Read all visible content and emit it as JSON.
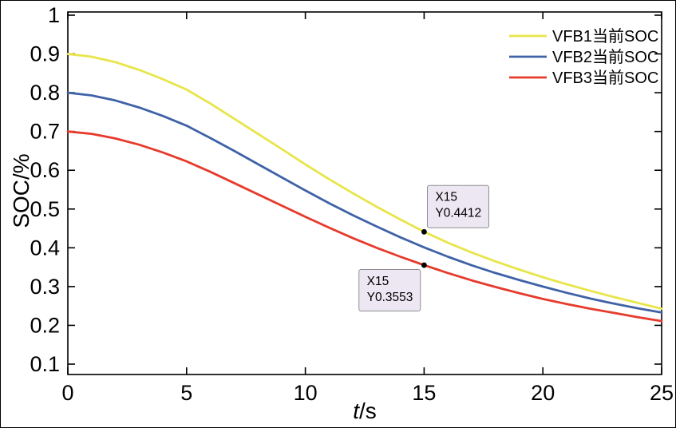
{
  "figure": {
    "background": "#ffffff",
    "border_color": "#000000"
  },
  "chart_data": {
    "type": "line",
    "title": "",
    "xlabel": "t/s",
    "xlabel_var": "t",
    "xlabel_unit": "/s",
    "ylabel": "SOC/%",
    "xlim": [
      0,
      25
    ],
    "xticks": [
      0,
      5,
      10,
      15,
      20,
      25
    ],
    "xtick_labels": [
      "0",
      "5",
      "10",
      "15",
      "20",
      "25"
    ],
    "yticks": [
      0.1,
      0.2,
      0.3,
      0.4,
      0.5,
      0.6,
      0.7,
      0.8,
      0.9,
      1
    ],
    "ytick_labels": [
      "0.1",
      "0.2",
      "0.3",
      "0.4",
      "0.5",
      "0.6",
      "0.7",
      "0.8",
      "0.9",
      "1"
    ],
    "grid": false,
    "legend_position": "top-right-inside",
    "x": [
      0,
      1,
      2,
      3,
      4,
      5,
      6,
      7,
      8,
      9,
      10,
      11,
      12,
      13,
      14,
      15,
      16,
      17,
      18,
      19,
      20,
      21,
      22,
      23,
      24,
      25
    ],
    "series": [
      {
        "name": "VFB1当前SOC",
        "color": "#e8e54a",
        "values": [
          0.9,
          0.893,
          0.879,
          0.859,
          0.835,
          0.808,
          0.772,
          0.733,
          0.694,
          0.655,
          0.615,
          0.577,
          0.541,
          0.506,
          0.473,
          0.4412,
          0.413,
          0.388,
          0.365,
          0.344,
          0.324,
          0.306,
          0.289,
          0.273,
          0.258,
          0.243
        ]
      },
      {
        "name": "VFB2当前SOC",
        "color": "#3f62a7",
        "values": [
          0.8,
          0.793,
          0.78,
          0.762,
          0.74,
          0.715,
          0.683,
          0.65,
          0.616,
          0.582,
          0.548,
          0.515,
          0.484,
          0.455,
          0.427,
          0.401,
          0.377,
          0.355,
          0.335,
          0.317,
          0.3,
          0.284,
          0.269,
          0.256,
          0.244,
          0.233
        ]
      },
      {
        "name": "VFB3当前SOC",
        "color": "#e63b2c",
        "values": [
          0.7,
          0.694,
          0.682,
          0.666,
          0.646,
          0.623,
          0.596,
          0.567,
          0.538,
          0.509,
          0.48,
          0.452,
          0.425,
          0.4,
          0.377,
          0.3553,
          0.335,
          0.316,
          0.299,
          0.283,
          0.268,
          0.255,
          0.243,
          0.232,
          0.221,
          0.211
        ]
      }
    ],
    "annotations": [
      {
        "lines": [
          "X15",
          "Y0.4412"
        ],
        "x": 15,
        "y": 0.4412,
        "series": "VFB1当前SOC",
        "box_position": "above-right"
      },
      {
        "lines": [
          "X15",
          "Y0.3553"
        ],
        "x": 15,
        "y": 0.3553,
        "series": "VFB3当前SOC",
        "box_position": "below-left"
      }
    ],
    "colors": {
      "axis": "#000000",
      "annotation_box": "#ece7f3",
      "annotation_border": "#8f8f8f",
      "datatip_marker": "#000000"
    }
  }
}
